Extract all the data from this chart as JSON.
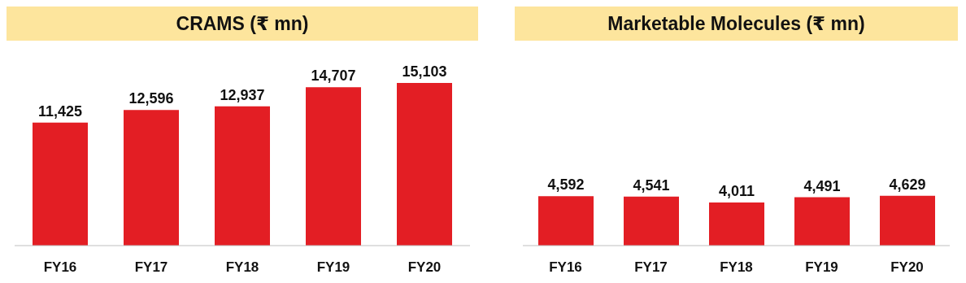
{
  "chart_data": [
    {
      "type": "bar",
      "title": "CRAMS (₹ mn)",
      "categories": [
        "FY16",
        "FY17",
        "FY18",
        "FY19",
        "FY20"
      ],
      "values": [
        11425,
        12596,
        12937,
        14707,
        15103
      ],
      "value_labels": [
        "11,425",
        "12,596",
        "12,937",
        "14,707",
        "15,103"
      ],
      "color": "#e31e24"
    },
    {
      "type": "bar",
      "title": "Marketable Molecules (₹ mn)",
      "categories": [
        "FY16",
        "FY17",
        "FY18",
        "FY19",
        "FY20"
      ],
      "values": [
        4592,
        4541,
        4011,
        4491,
        4629
      ],
      "value_labels": [
        "4,592",
        "4,541",
        "4,011",
        "4,491",
        "4,629"
      ],
      "color": "#e31e24"
    }
  ]
}
